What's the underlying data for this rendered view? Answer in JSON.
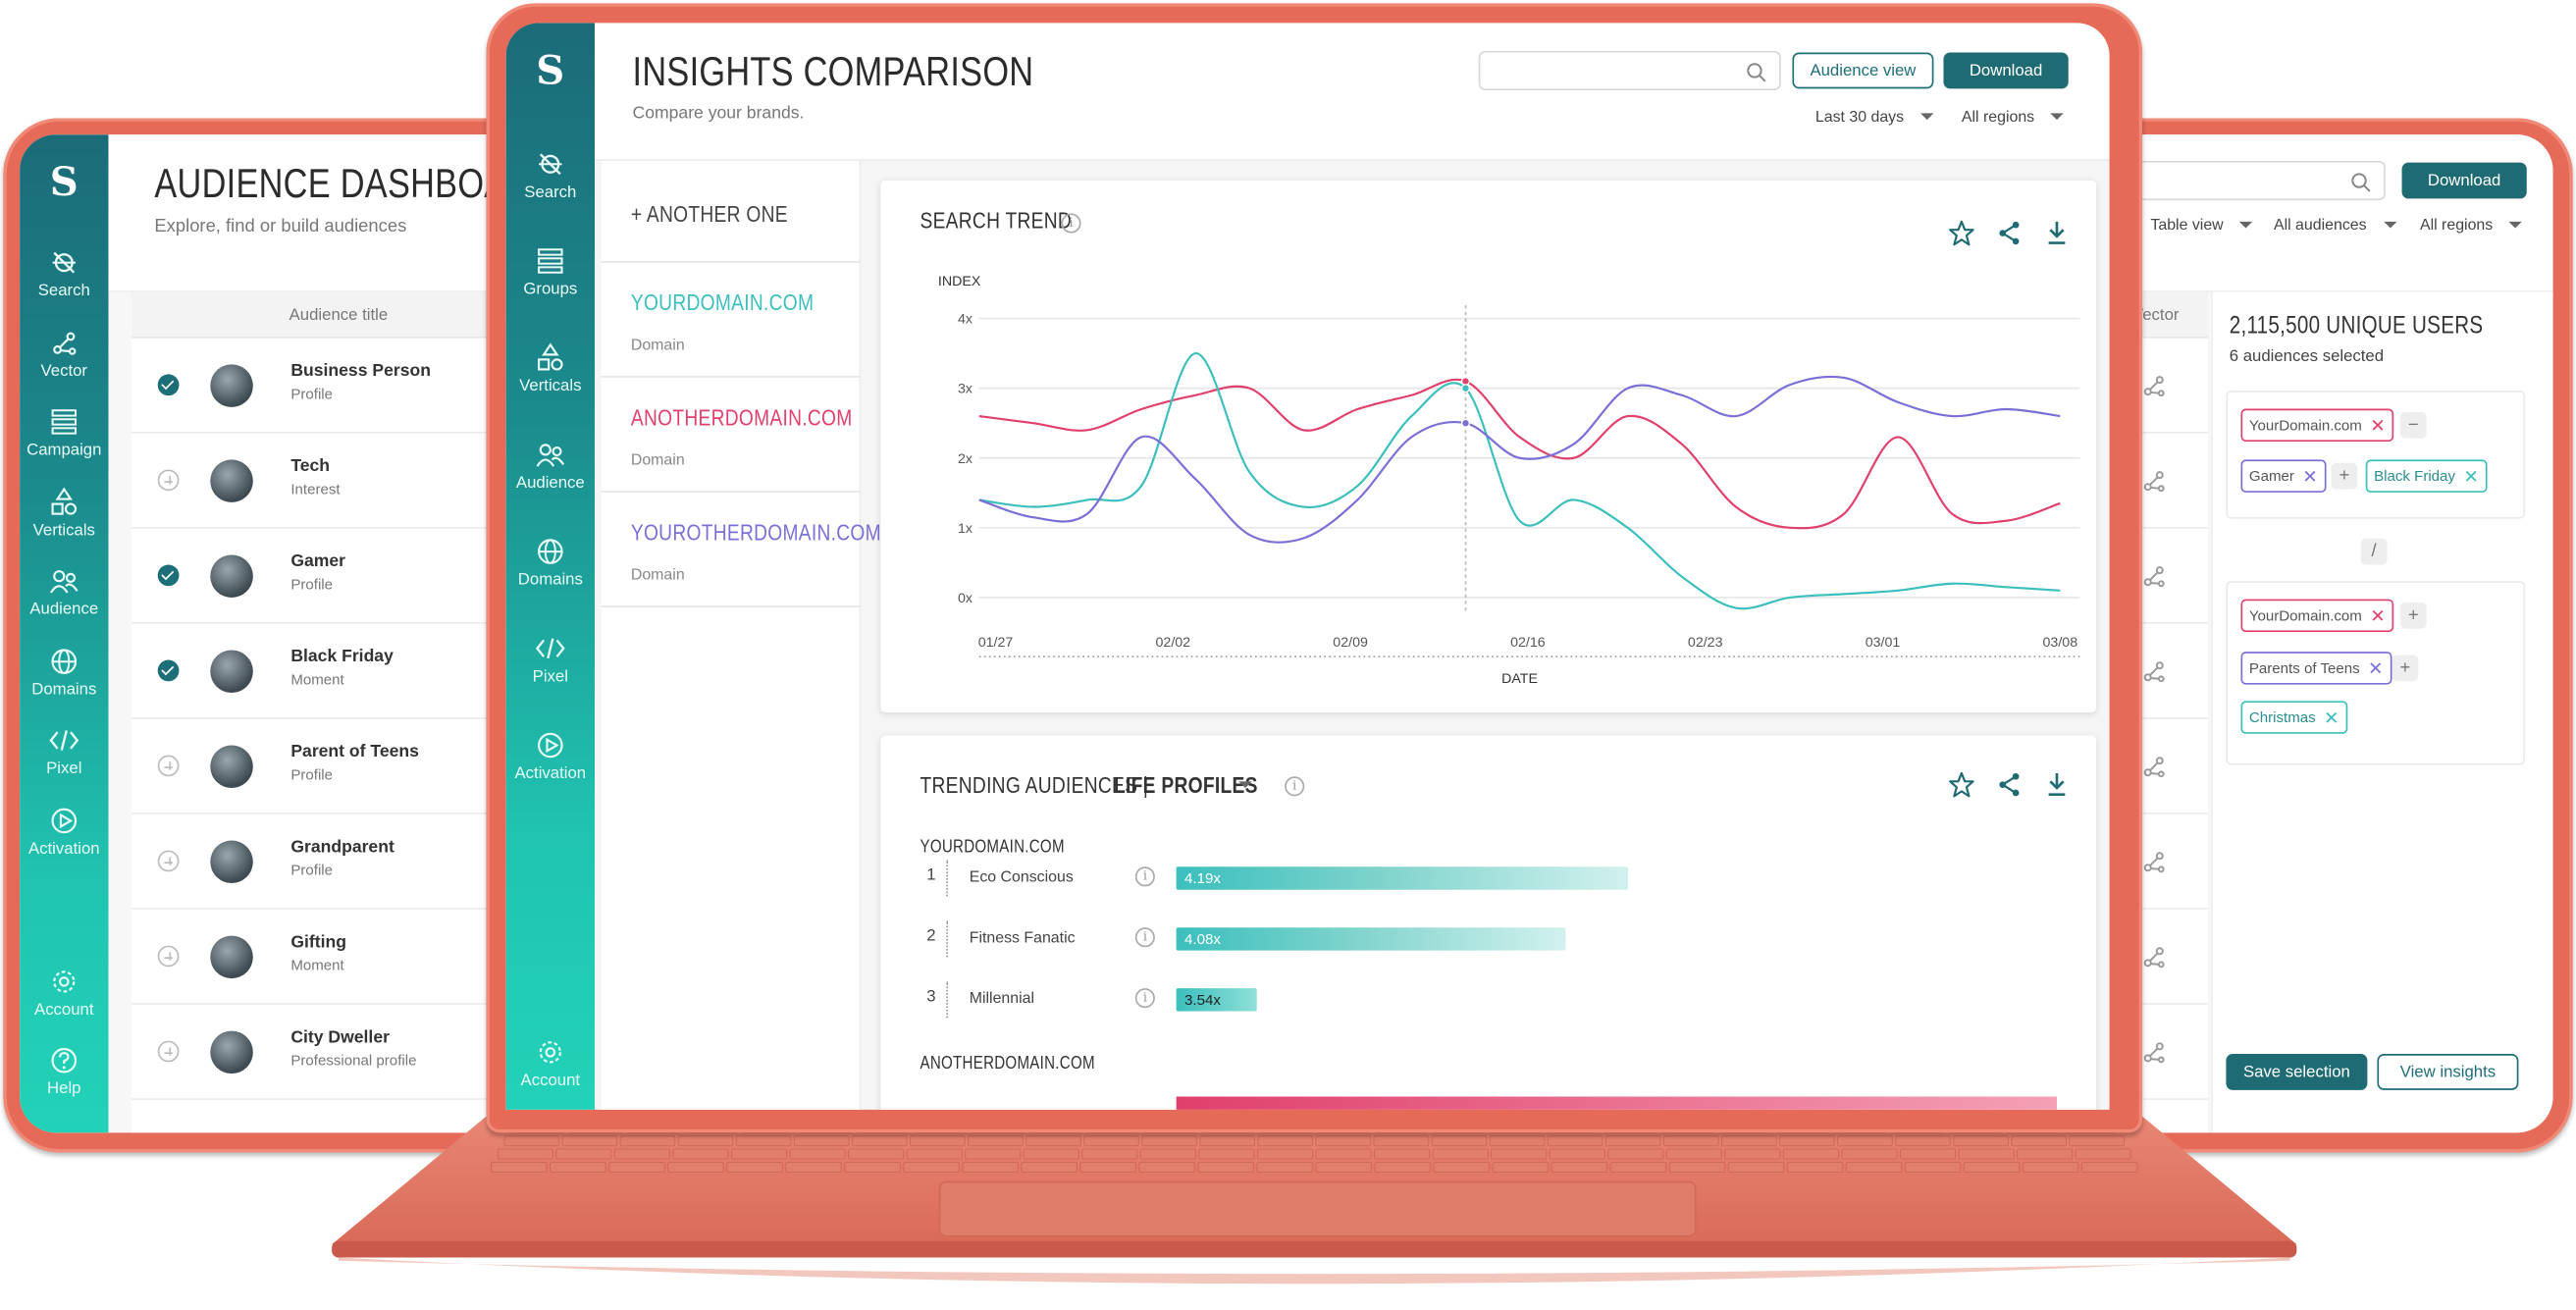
{
  "colors": {
    "teal_dark": "#1f6b73",
    "accent_teal": "#3bbfbd",
    "accent_pink": "#e0406b",
    "accent_purple": "#7a6fd6",
    "device": "#e56a58"
  },
  "left_app": {
    "logo": "S",
    "title": "AUDIENCE DASHBOARD",
    "subtitle": "Explore, find or build audiences",
    "column_header": "Audience title",
    "nav": [
      {
        "label": "Search",
        "icon": "search-icon"
      },
      {
        "label": "Vector",
        "icon": "vector-icon"
      },
      {
        "label": "Campaign",
        "icon": "campaign-icon"
      },
      {
        "label": "Verticals",
        "icon": "verticals-icon"
      },
      {
        "label": "Audience",
        "icon": "audience-icon"
      },
      {
        "label": "Domains",
        "icon": "globe-icon"
      },
      {
        "label": "Pixel",
        "icon": "code-icon"
      },
      {
        "label": "Activation",
        "icon": "play-icon"
      }
    ],
    "nav_bottom": [
      {
        "label": "Account",
        "icon": "gear-icon"
      },
      {
        "label": "Help",
        "icon": "help-icon"
      }
    ],
    "rows": [
      {
        "name": "Business Person",
        "type": "Profile",
        "checked": true
      },
      {
        "name": "Tech",
        "type": "Interest",
        "checked": false
      },
      {
        "name": "Gamer",
        "type": "Profile",
        "checked": true
      },
      {
        "name": "Black Friday",
        "type": "Moment",
        "checked": true
      },
      {
        "name": "Parent of Teens",
        "type": "Profile",
        "checked": false
      },
      {
        "name": "Grandparent",
        "type": "Profile",
        "checked": false
      },
      {
        "name": "Gifting",
        "type": "Moment",
        "checked": false
      },
      {
        "name": "City Dweller",
        "type": "Professional profile",
        "checked": false
      }
    ]
  },
  "right_app": {
    "download": "Download",
    "filters": [
      "Table view",
      "All audiences",
      "All regions"
    ],
    "vector_header": "Vector",
    "unique_users": "2,115,500 UNIQUE USERS",
    "selected": "6 audiences selected",
    "group1_row1": [
      {
        "label": "YourDomain.com",
        "color": "#e0406b"
      }
    ],
    "group1_row2": [
      {
        "label": "Gamer",
        "color": "#7a6fd6"
      },
      {
        "label": "Black Friday",
        "color": "#3bbfbd"
      }
    ],
    "divider": "/",
    "group2": [
      {
        "label": "YourDomain.com",
        "color": "#e0406b"
      },
      {
        "label": "Parents of Teens",
        "color": "#7a6fd6"
      },
      {
        "label": "Christmas",
        "color": "#3bbfbd"
      }
    ],
    "save": "Save selection",
    "view": "View insights"
  },
  "center_app": {
    "logo": "S",
    "title": "INSIGHTS COMPARISON",
    "subtitle": "Compare your brands.",
    "audience_view": "Audience view",
    "download": "Download",
    "range": "Last 30 days",
    "regions": "All regions",
    "nav": [
      {
        "label": "Search",
        "icon": "search-icon"
      },
      {
        "label": "Groups",
        "icon": "groups-icon"
      },
      {
        "label": "Verticals",
        "icon": "verticals-icon"
      },
      {
        "label": "Audience",
        "icon": "audience-icon"
      },
      {
        "label": "Domains",
        "icon": "globe-icon"
      },
      {
        "label": "Pixel",
        "icon": "code-icon"
      },
      {
        "label": "Activation",
        "icon": "play-icon"
      }
    ],
    "nav_bottom": {
      "label": "Account",
      "icon": "gear-icon"
    },
    "another": "+ ANOTHER ONE",
    "domains": [
      {
        "name": "YOURDOMAIN.COM",
        "type": "Domain",
        "color": "#3bbfbd"
      },
      {
        "name": "ANOTHERDOMAIN.COM",
        "type": "Domain",
        "color": "#e0406b"
      },
      {
        "name": "YOUROTHERDOMAIN.COM",
        "type": "Domain",
        "color": "#7a6fd6"
      }
    ],
    "trend_title": "SEARCH TREND",
    "trending_title": "TRENDING AUDIENCES |",
    "trending_select": "LIFE PROFILES",
    "section1": "YOURDOMAIN.COM",
    "section2": "ANOTHERDOMAIN.COM",
    "audiences": [
      {
        "rank": "1",
        "name": "Eco Conscious",
        "value": 4.19,
        "label": "4.19x"
      },
      {
        "rank": "2",
        "name": "Fitness Fanatic",
        "value": 4.08,
        "label": "4.08x"
      },
      {
        "rank": "3",
        "name": "Millennial",
        "value": 3.54,
        "label": "3.54x"
      }
    ]
  },
  "chart_data": {
    "type": "line",
    "title": "SEARCH TREND",
    "ylabel": "INDEX",
    "xlabel": "DATE",
    "x_ticks": [
      "01/27",
      "02/02",
      "02/09",
      "02/16",
      "02/23",
      "03/01",
      "03/08"
    ],
    "y_ticks": [
      "0x",
      "1x",
      "2x",
      "3x",
      "4x"
    ],
    "ylim": [
      0,
      4
    ],
    "grid": true,
    "x": [
      0,
      1,
      2,
      3,
      4,
      5,
      6,
      7,
      8,
      9,
      10,
      11,
      12,
      13,
      14,
      15,
      16,
      17,
      18,
      19,
      20
    ],
    "series": [
      {
        "color": "#e0406b",
        "values": [
          2.6,
          2.5,
          2.4,
          2.7,
          2.9,
          3.0,
          2.4,
          2.7,
          2.9,
          3.1,
          2.3,
          2.0,
          2.6,
          2.2,
          1.3,
          1.0,
          1.2,
          2.3,
          1.2,
          1.1,
          1.35
        ]
      },
      {
        "color": "#3bbfbd",
        "values": [
          1.4,
          1.3,
          1.4,
          1.6,
          3.5,
          1.8,
          1.3,
          1.6,
          2.6,
          3.0,
          1.1,
          1.4,
          1.0,
          0.3,
          -0.15,
          0.0,
          0.05,
          0.1,
          0.2,
          0.15,
          0.1
        ]
      },
      {
        "color": "#7a6fd6",
        "values": [
          1.4,
          1.15,
          1.2,
          2.3,
          1.7,
          0.9,
          0.85,
          1.4,
          2.3,
          2.5,
          2.0,
          2.2,
          3.0,
          2.9,
          2.6,
          3.05,
          3.15,
          2.8,
          2.6,
          2.7,
          2.6
        ]
      }
    ]
  }
}
